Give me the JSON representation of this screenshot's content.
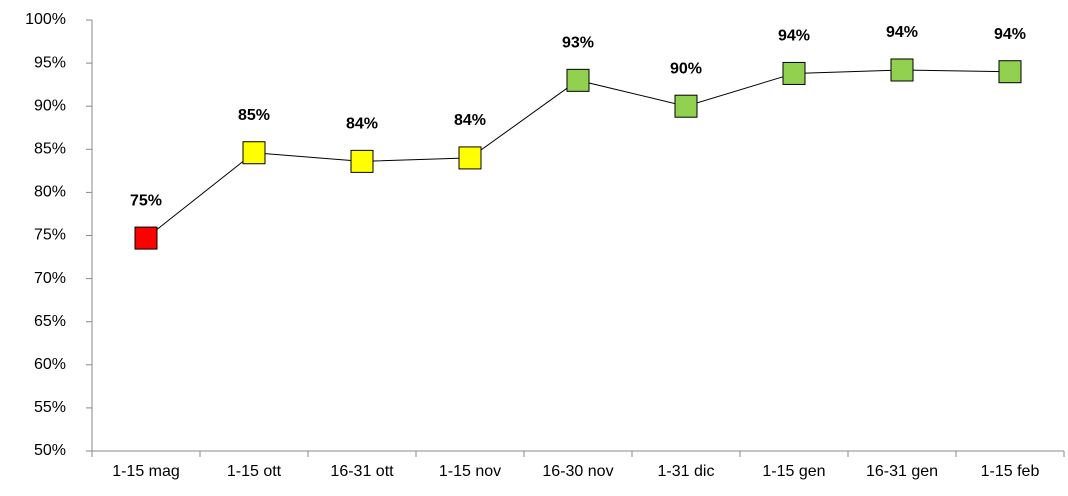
{
  "chart_data": {
    "type": "line",
    "categories": [
      "1-15 mag",
      "1-15 ott",
      "16-31 ott",
      "1-15 nov",
      "16-30 nov",
      "1-31 dic",
      "1-15 gen",
      "16-31 gen",
      "1-15 feb"
    ],
    "values": [
      74.7,
      84.6,
      83.6,
      84.0,
      93.0,
      90.0,
      93.8,
      94.2,
      94.0
    ],
    "value_labels": [
      "75%",
      "85%",
      "84%",
      "84%",
      "93%",
      "90%",
      "94%",
      "94%",
      "94%"
    ],
    "colors": [
      "#ff0000",
      "#ffff00",
      "#ffff00",
      "#ffff00",
      "#92d050",
      "#92d050",
      "#92d050",
      "#92d050",
      "#92d050"
    ],
    "line_color": "#000000",
    "ylim": [
      50,
      100
    ],
    "yticks": [
      {
        "value": 50,
        "label": "50%"
      },
      {
        "value": 55,
        "label": "55%"
      },
      {
        "value": 60,
        "label": "60%"
      },
      {
        "value": 65,
        "label": "65%"
      },
      {
        "value": 70,
        "label": "70%"
      },
      {
        "value": 75,
        "label": "75%"
      },
      {
        "value": 80,
        "label": "80%"
      },
      {
        "value": 85,
        "label": "85%"
      },
      {
        "value": 90,
        "label": "90%"
      },
      {
        "value": 95,
        "label": "95%"
      },
      {
        "value": 100,
        "label": "100%"
      }
    ],
    "grid": false
  }
}
